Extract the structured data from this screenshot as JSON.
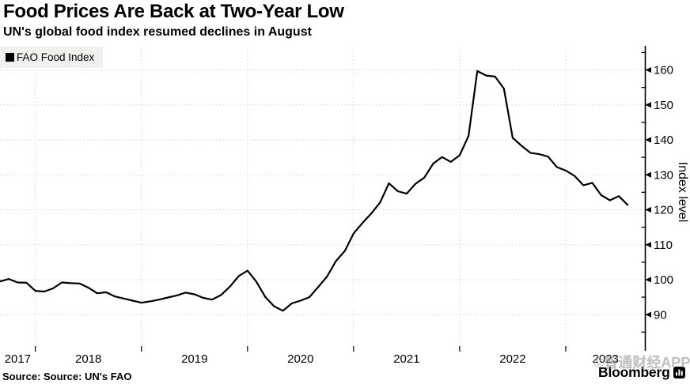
{
  "header": {
    "title": "Food Prices Are Back at Two-Year Low",
    "subtitle": "UN's global food index resumed declines in August"
  },
  "legend": {
    "items": [
      {
        "label": "FAO Food Index",
        "color": "#000000"
      }
    ]
  },
  "footer": {
    "source": "Source: Source: UN's FAO",
    "brand": "Bloomberg",
    "watermark": "©智通财经APP"
  },
  "colors": {
    "line": "#000000",
    "grid": "#cbcbcb",
    "axis": "#000000",
    "legend_bg": "#f0f0ee",
    "watermark": "#b9b9b9",
    "background": "#ffffff"
  },
  "chart_data": {
    "type": "line",
    "title": "Food Prices Are Back at Two-Year Low",
    "subtitle": "UN's global food index resumed declines in August",
    "ylabel": "Index level",
    "xlabel": "",
    "frequency": "monthly",
    "x_start_month": "2017-09",
    "x_end_month": "2023-08",
    "x_tick_labels": [
      "2017",
      "2018",
      "2019",
      "2020",
      "2021",
      "2022",
      "2023"
    ],
    "y_ticks": [
      90,
      100,
      110,
      120,
      130,
      140,
      150,
      160
    ],
    "ylim": [
      81,
      166
    ],
    "grid": "dotted",
    "legend_position": "top-left",
    "axis_side": "right",
    "series": [
      {
        "name": "FAO Food Index",
        "color": "#000000",
        "values": [
          99.5,
          100.2,
          99.2,
          99.1,
          96.8,
          96.6,
          97.5,
          99.2,
          99.0,
          98.9,
          97.7,
          96.1,
          96.4,
          95.2,
          94.6,
          94.0,
          93.4,
          93.8,
          94.3,
          94.9,
          95.5,
          96.3,
          95.8,
          94.8,
          94.3,
          95.6,
          98.0,
          101.0,
          102.6,
          99.4,
          95.1,
          92.4,
          91.1,
          93.2,
          94.0,
          95.0,
          97.9,
          100.9,
          105.3,
          108.2,
          113.2,
          116.2,
          118.9,
          122.1,
          127.6,
          125.3,
          124.6,
          127.4,
          129.2,
          133.2,
          135.1,
          133.7,
          135.6,
          141.1,
          159.7,
          158.4,
          158.1,
          154.7,
          140.6,
          138.3,
          136.3,
          135.9,
          135.2,
          132.2,
          131.2,
          129.7,
          127.0,
          127.7,
          124.2,
          122.7,
          123.9,
          121.4
        ]
      }
    ]
  }
}
